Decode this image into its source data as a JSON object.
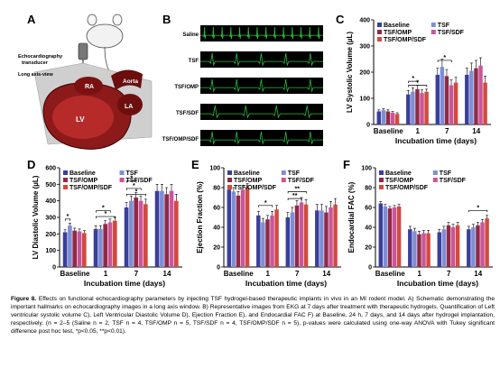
{
  "panel_letters": {
    "A": "A",
    "B": "B",
    "C": "C",
    "D": "D",
    "E": "E",
    "F": "F"
  },
  "panel_a": {
    "labels": {
      "transducer": "Echocardiography transducer",
      "view": "Long axis-view",
      "ra": "RA",
      "aorta": "Aorta",
      "lv": "LV",
      "la": "LA"
    }
  },
  "panel_b": {
    "traces": [
      "Saline",
      "TSF",
      "TSF/OMP",
      "TSF/SDF",
      "TSF/OMP/SDF"
    ],
    "trace_color": "#2bbf3c"
  },
  "legend": [
    "Baseline",
    "TSF",
    "TSF/OMP",
    "TSF/SDF",
    "TSF/OMP/SDF"
  ],
  "colors": [
    "#3a3f99",
    "#7e8ed6",
    "#8f2a46",
    "#c9569a",
    "#d24a3e"
  ],
  "xlabel": "Incubation time (days)",
  "categories": [
    "Baseline",
    "1",
    "7",
    "14"
  ],
  "chart_data": [
    {
      "id": "C",
      "type": "bar",
      "ylabel": "LV Systolic Volume (µL)",
      "ylim": [
        0,
        400
      ],
      "yticks": [
        0,
        100,
        200,
        300,
        400
      ],
      "categories": [
        "Baseline",
        "1",
        "7",
        "14"
      ],
      "series": [
        {
          "name": "Baseline",
          "values": [
            50,
            115,
            190,
            190
          ],
          "err": [
            6,
            15,
            25,
            25
          ]
        },
        {
          "name": "TSF",
          "values": [
            55,
            125,
            220,
            205
          ],
          "err": [
            6,
            15,
            30,
            30
          ]
        },
        {
          "name": "TSF/OMP",
          "values": [
            50,
            135,
            185,
            215
          ],
          "err": [
            6,
            15,
            25,
            30
          ]
        },
        {
          "name": "TSF/SDF",
          "values": [
            45,
            120,
            150,
            225
          ],
          "err": [
            5,
            12,
            20,
            30
          ]
        },
        {
          "name": "TSF/OMP/SDF",
          "values": [
            40,
            125,
            160,
            160
          ],
          "err": [
            5,
            10,
            20,
            25
          ]
        }
      ],
      "significance": [
        {
          "label": "*",
          "group": 1,
          "from": 0,
          "to": 2,
          "y": 165
        },
        {
          "label": "*",
          "group": 1,
          "from": 0,
          "to": 4,
          "y": 150
        },
        {
          "label": "*",
          "group": 2,
          "from": 0,
          "to": 3,
          "y": 245
        }
      ]
    },
    {
      "id": "D",
      "type": "bar",
      "ylabel": "LV Diastolic Volume (µL)",
      "ylim": [
        0,
        600
      ],
      "yticks": [
        0,
        100,
        200,
        300,
        400,
        500,
        600
      ],
      "categories": [
        "Baseline",
        "1",
        "7",
        "14"
      ],
      "series": [
        {
          "name": "Baseline",
          "values": [
            210,
            230,
            360,
            460
          ],
          "err": [
            15,
            20,
            30,
            40
          ]
        },
        {
          "name": "TSF",
          "values": [
            250,
            230,
            400,
            460
          ],
          "err": [
            15,
            20,
            30,
            40
          ]
        },
        {
          "name": "TSF/OMP",
          "values": [
            220,
            260,
            420,
            440
          ],
          "err": [
            15,
            20,
            30,
            40
          ]
        },
        {
          "name": "TSF/SDF",
          "values": [
            215,
            270,
            400,
            460
          ],
          "err": [
            15,
            20,
            30,
            40
          ]
        },
        {
          "name": "TSF/OMP/SDF",
          "values": [
            205,
            280,
            380,
            400
          ],
          "err": [
            15,
            20,
            30,
            40
          ]
        }
      ],
      "significance": [
        {
          "label": "*",
          "group": 0,
          "from": 0,
          "to": 1,
          "y": 290
        },
        {
          "label": "*",
          "group": 1,
          "from": 0,
          "to": 3,
          "y": 340
        },
        {
          "label": "*",
          "group": 1,
          "from": 0,
          "to": 4,
          "y": 305
        },
        {
          "label": "*",
          "group": 2,
          "from": 0,
          "to": 2,
          "y": 520
        },
        {
          "label": "*",
          "group": 2,
          "from": 0,
          "to": 3,
          "y": 475
        },
        {
          "label": "*",
          "group": 2,
          "from": 0,
          "to": 4,
          "y": 440
        }
      ]
    },
    {
      "id": "E",
      "type": "bar",
      "ylabel": "Ejection Fraction (%)",
      "ylim": [
        0,
        100
      ],
      "yticks": [
        0,
        20,
        40,
        60,
        80,
        100
      ],
      "categories": [
        "Baseline",
        "1",
        "7",
        "14"
      ],
      "series": [
        {
          "name": "Baseline",
          "values": [
            78,
            52,
            50,
            57
          ],
          "err": [
            4,
            4,
            5,
            6
          ]
        },
        {
          "name": "TSF",
          "values": [
            76,
            45,
            55,
            57
          ],
          "err": [
            4,
            4,
            5,
            6
          ]
        },
        {
          "name": "TSF/OMP",
          "values": [
            72,
            48,
            62,
            55
          ],
          "err": [
            4,
            4,
            5,
            6
          ]
        },
        {
          "name": "TSF/SDF",
          "values": [
            78,
            52,
            65,
            60
          ],
          "err": [
            4,
            4,
            5,
            6
          ]
        },
        {
          "name": "TSF/OMP/SDF",
          "values": [
            80,
            58,
            63,
            63
          ],
          "err": [
            4,
            4,
            5,
            6
          ]
        }
      ],
      "significance": [
        {
          "label": "*",
          "group": 1,
          "from": 0,
          "to": 3,
          "y": 62
        },
        {
          "label": "**",
          "group": 2,
          "from": 0,
          "to": 4,
          "y": 76
        },
        {
          "label": "**",
          "group": 2,
          "from": 0,
          "to": 3,
          "y": 69
        }
      ]
    },
    {
      "id": "F",
      "type": "bar",
      "ylabel": "Endocardial FAC (%)",
      "ylim": [
        0,
        100
      ],
      "yticks": [
        0,
        20,
        40,
        60,
        80,
        100
      ],
      "categories": [
        "Baseline",
        "1",
        "7",
        "14"
      ],
      "series": [
        {
          "name": "Baseline",
          "values": [
            64,
            38,
            35,
            38
          ],
          "err": [
            2,
            3,
            3,
            3
          ]
        },
        {
          "name": "TSF",
          "values": [
            61,
            36,
            38,
            40
          ],
          "err": [
            2,
            3,
            3,
            3
          ]
        },
        {
          "name": "TSF/OMP",
          "values": [
            59,
            33,
            42,
            42
          ],
          "err": [
            2,
            3,
            3,
            3
          ]
        },
        {
          "name": "TSF/SDF",
          "values": [
            60,
            34,
            40,
            45
          ],
          "err": [
            2,
            3,
            3,
            3
          ]
        },
        {
          "name": "TSF/OMP/SDF",
          "values": [
            61,
            34,
            42,
            49
          ],
          "err": [
            2,
            3,
            3,
            3
          ]
        }
      ],
      "significance": [
        {
          "label": "*",
          "group": 3,
          "from": 0,
          "to": 4,
          "y": 57
        }
      ]
    }
  ],
  "caption": {
    "label": "Figure 8.",
    "text": "Effects on functional echocardiography parameters by injecting TSF hydrogel-based therapeutic implants in vivo in an MI rodent model. A) Schematic demonstrating the important hallmarks on echocardiography images in a long axis window. B) Representative images from EKG at 7 days after treatment with therapeutic hydrogels. Quantification of Left ventricular systolic volume C), Left Ventricular Diastolic Volume D), Ejection Fraction E), and Endocardial FAC F) at Baseline, 24 h, 7 days, and 14 days after hydrogel implantation, respectively. (n = 2–5 (Saline n = 2, TSF n = 4, TSF/OMP n = 5, TSF/SDF n = 4, TSF/OMP/SDF n = 5), p-values were calculated using one-way ANOVA with Tukey significant difference post hoc test, *p<0.05, **p<0.01)."
  }
}
